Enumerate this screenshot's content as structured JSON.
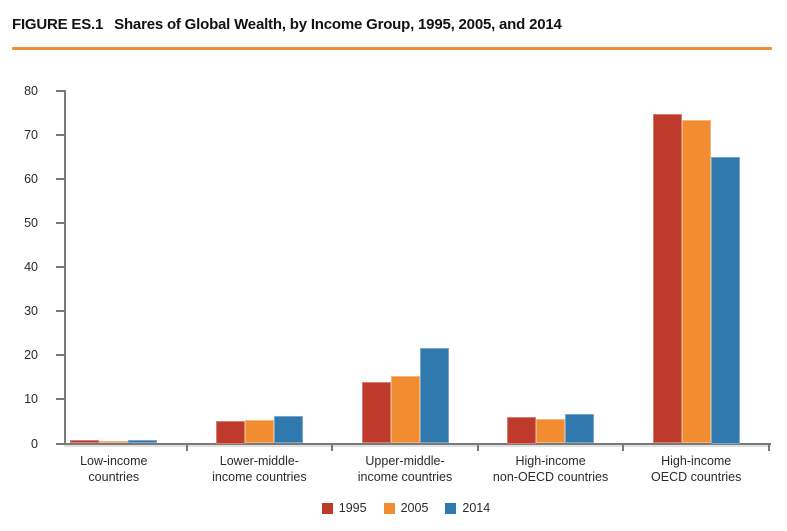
{
  "title": {
    "prefix": "FIGURE ES.1",
    "text": "Shares of Global Wealth, by Income Group, 1995, 2005, and 2014"
  },
  "accent_rule_color": "#f08c33",
  "colors": {
    "axis": "#7a7a7a",
    "text": "#2b2b2b",
    "title_text": "#131313"
  },
  "chart_data": {
    "type": "bar",
    "title": "Shares of Global Wealth, by Income Group, 1995, 2005, and 2014",
    "categories": [
      "Low-income\ncountries",
      "Lower-middle-\nincome countries",
      "Upper-middle-\nincome countries",
      "High-income\nnon-OECD countries",
      "High-income\nOECD countries"
    ],
    "series": [
      {
        "name": "1995",
        "color": "#be3a2b",
        "values": [
          0.7,
          5.0,
          13.9,
          6.0,
          74.7
        ]
      },
      {
        "name": "2005",
        "color": "#f28c31",
        "values": [
          0.6,
          5.4,
          15.4,
          5.6,
          73.4
        ]
      },
      {
        "name": "2014",
        "color": "#3079ae",
        "values": [
          0.8,
          6.3,
          21.7,
          6.7,
          65.0
        ]
      }
    ],
    "xlabel": "",
    "ylabel": "",
    "ylim": [
      0,
      80
    ],
    "yticks": [
      0,
      10,
      20,
      30,
      40,
      50,
      60,
      70,
      80
    ],
    "grid": false,
    "legend_position": "bottom"
  }
}
